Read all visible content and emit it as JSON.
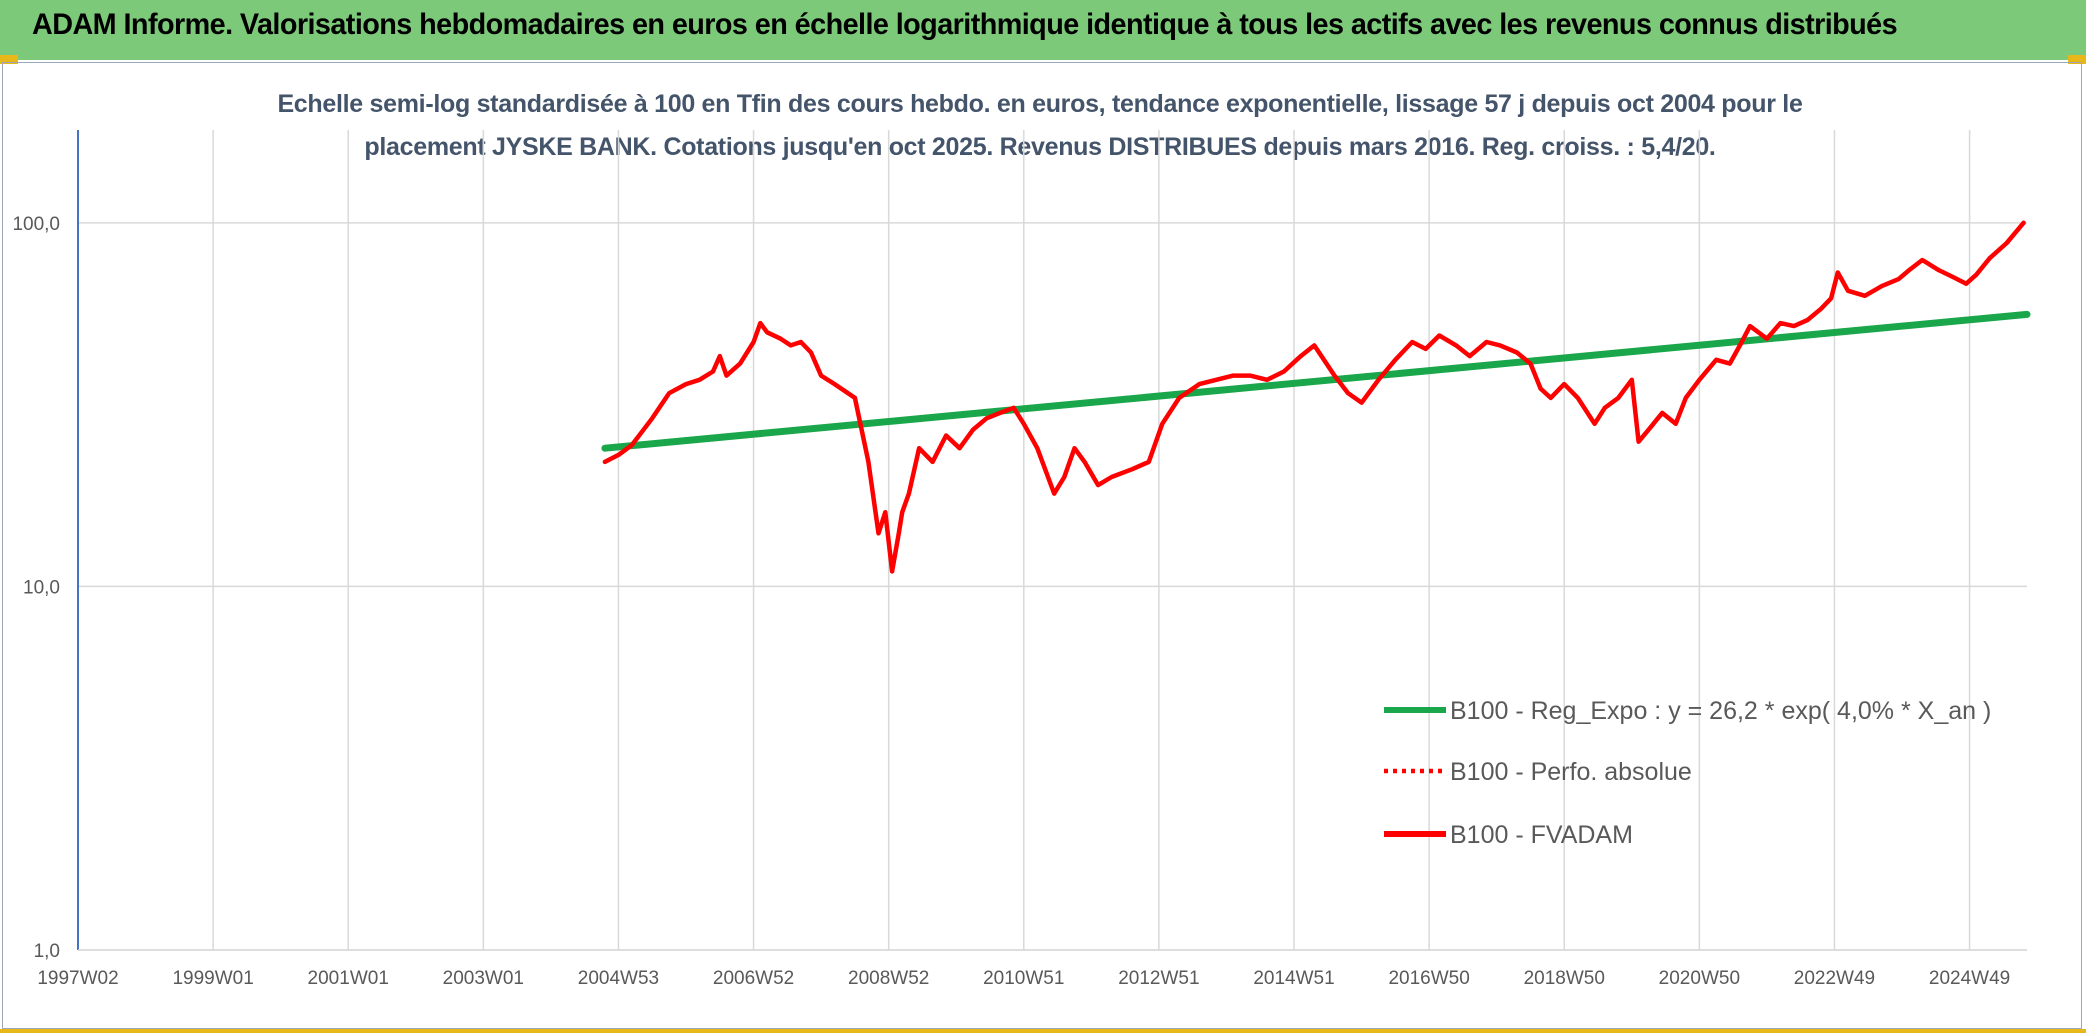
{
  "header": {
    "title": "ADAM Informe. Valorisations hebdomadaires en euros en échelle logarithmique identique à tous les actifs avec les revenus connus distribués"
  },
  "chart_data": {
    "type": "line",
    "title_line1": "Echelle semi-log standardisée à 100 en Tfin des cours hebdo. en euros, tendance exponentielle, lissage 57 j depuis oct 2004 pour le",
    "title_line2": "placement JYSKE BANK. Cotations jusqu'en oct 2025. Revenus DISTRIBUES depuis mars 2016. Reg. croiss. : 5,4/20.",
    "y_scale": "log",
    "ylim": [
      1,
      180
    ],
    "y_ticks": [
      {
        "value": 1,
        "label": "1,0"
      },
      {
        "value": 10,
        "label": "10,0"
      },
      {
        "value": 100,
        "label": "100,0"
      }
    ],
    "x_range": [
      1997.0,
      2025.85
    ],
    "x_ticks": [
      {
        "value": 1997.0,
        "label": "1997W02"
      },
      {
        "value": 1999.0,
        "label": "1999W01"
      },
      {
        "value": 2001.0,
        "label": "2001W01"
      },
      {
        "value": 2003.0,
        "label": "2003W01"
      },
      {
        "value": 2005.0,
        "label": "2004W53"
      },
      {
        "value": 2007.0,
        "label": "2006W52"
      },
      {
        "value": 2009.0,
        "label": "2008W52"
      },
      {
        "value": 2011.0,
        "label": "2010W51"
      },
      {
        "value": 2013.0,
        "label": "2012W51"
      },
      {
        "value": 2015.0,
        "label": "2014W51"
      },
      {
        "value": 2017.0,
        "label": "2016W50"
      },
      {
        "value": 2019.0,
        "label": "2018W50"
      },
      {
        "value": 2021.0,
        "label": "2020W50"
      },
      {
        "value": 2023.0,
        "label": "2022W49"
      },
      {
        "value": 2025.0,
        "label": "2024W49"
      }
    ],
    "grid": true,
    "legend_position": "bottom-right",
    "series": [
      {
        "name": "B100 - Reg_Expo : y = 26,2 * exp( 4,0% *  X_an )",
        "color": "#1aa64a",
        "style": "solid",
        "x": [
          2004.8,
          2025.85
        ],
        "y": [
          24.0,
          56.0
        ]
      },
      {
        "name": "B100 - Perfo. absolue",
        "color": "#ff0000",
        "style": "dotted",
        "x": [],
        "y": []
      },
      {
        "name": "B100 - FVADAM",
        "color": "#ff0000",
        "style": "solid",
        "x": [
          2004.8,
          2005.0,
          2005.2,
          2005.5,
          2005.75,
          2006.0,
          2006.2,
          2006.4,
          2006.5,
          2006.6,
          2006.8,
          2007.0,
          2007.1,
          2007.2,
          2007.4,
          2007.55,
          2007.7,
          2007.85,
          2008.0,
          2008.2,
          2008.5,
          2008.7,
          2008.85,
          2008.95,
          2009.05,
          2009.15,
          2009.2,
          2009.3,
          2009.45,
          2009.65,
          2009.85,
          2010.05,
          2010.25,
          2010.45,
          2010.65,
          2010.85,
          2011.0,
          2011.2,
          2011.45,
          2011.6,
          2011.75,
          2011.9,
          2012.1,
          2012.3,
          2012.6,
          2012.85,
          2013.05,
          2013.3,
          2013.6,
          2013.85,
          2014.1,
          2014.35,
          2014.6,
          2014.85,
          2015.1,
          2015.3,
          2015.6,
          2015.8,
          2016.0,
          2016.25,
          2016.5,
          2016.75,
          2016.95,
          2017.15,
          2017.4,
          2017.6,
          2017.85,
          2018.05,
          2018.3,
          2018.5,
          2018.65,
          2018.8,
          2019.0,
          2019.2,
          2019.45,
          2019.6,
          2019.8,
          2020.0,
          2020.1,
          2020.25,
          2020.45,
          2020.65,
          2020.8,
          2021.0,
          2021.25,
          2021.45,
          2021.6,
          2021.75,
          2022.0,
          2022.2,
          2022.4,
          2022.6,
          2022.8,
          2022.95,
          2023.05,
          2023.2,
          2023.45,
          2023.7,
          2023.95,
          2024.1,
          2024.3,
          2024.55,
          2024.75,
          2024.95,
          2025.1,
          2025.3,
          2025.55,
          2025.8
        ],
        "y": [
          22.0,
          23.0,
          24.5,
          29.0,
          34.0,
          36.0,
          37.0,
          39.0,
          43.0,
          38.0,
          41.0,
          47.0,
          53.0,
          50.0,
          48.0,
          46.0,
          47.0,
          44.0,
          38.0,
          36.0,
          33.0,
          22.0,
          14.0,
          16.0,
          11.0,
          14.0,
          16.0,
          18.0,
          24.0,
          22.0,
          26.0,
          24.0,
          27.0,
          29.0,
          30.0,
          31.0,
          28.0,
          24.0,
          18.0,
          20.0,
          24.0,
          22.0,
          19.0,
          20.0,
          21.0,
          22.0,
          28.0,
          33.0,
          36.0,
          37.0,
          38.0,
          38.0,
          37.0,
          39.0,
          43.0,
          46.0,
          38.0,
          34.0,
          32.0,
          37.0,
          42.0,
          47.0,
          45.0,
          49.0,
          46.0,
          43.0,
          47.0,
          46.0,
          44.0,
          41.0,
          35.0,
          33.0,
          36.0,
          33.0,
          28.0,
          31.0,
          33.0,
          37.0,
          25.0,
          27.0,
          30.0,
          28.0,
          33.0,
          37.0,
          42.0,
          41.0,
          46.0,
          52.0,
          48.0,
          53.0,
          52.0,
          54.0,
          58.0,
          62.0,
          73.0,
          65.0,
          63.0,
          67.0,
          70.0,
          74.0,
          79.0,
          74.0,
          71.0,
          68.0,
          72.0,
          80.0,
          88.0,
          100.0
        ]
      }
    ]
  }
}
